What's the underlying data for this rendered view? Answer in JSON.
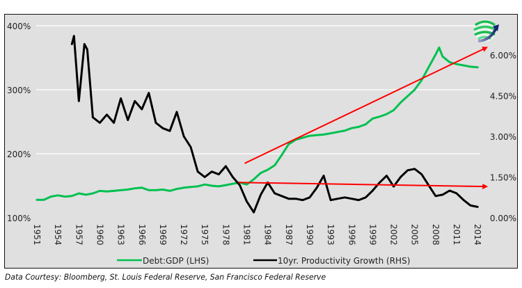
{
  "chart_data": {
    "type": "line",
    "title": "",
    "xlabel": "",
    "ylabel": "",
    "x_ticks": [
      "1951",
      "1954",
      "1957",
      "1960",
      "1963",
      "1966",
      "1969",
      "1972",
      "1975",
      "1978",
      "1981",
      "1984",
      "1987",
      "1990",
      "1993",
      "1996",
      "1999",
      "2002",
      "2005",
      "2008",
      "2011",
      "2014"
    ],
    "xlim": [
      1951,
      2015
    ],
    "y_left": {
      "ticks": [
        "100%",
        "200%",
        "300%",
        "400%"
      ],
      "tick_values": [
        100,
        200,
        300,
        400
      ],
      "ylim": [
        100,
        400
      ]
    },
    "y_right": {
      "ticks": [
        "0.00%",
        "1.50%",
        "3.00%",
        "4.50%",
        "6.00%"
      ],
      "tick_values": [
        0,
        1.5,
        3,
        4.5,
        6
      ],
      "ylim": [
        0,
        6
      ]
    },
    "grid": true,
    "legend_position": "bottom",
    "series": [
      {
        "name": "Debt:GDP (LHS)",
        "axis": "left",
        "color": "#00c050",
        "x": [
          1951,
          1952,
          1953,
          1954,
          1955,
          1956,
          1957,
          1958,
          1959,
          1960,
          1961,
          1962,
          1963,
          1964,
          1965,
          1966,
          1967,
          1968,
          1969,
          1970,
          1971,
          1972,
          1973,
          1974,
          1975,
          1976,
          1977,
          1978,
          1979,
          1980,
          1981,
          1982,
          1983,
          1984,
          1985,
          1986,
          1987,
          1988,
          1989,
          1990,
          1991,
          1992,
          1993,
          1994,
          1995,
          1996,
          1997,
          1998,
          1999,
          2000,
          2001,
          2002,
          2003,
          2004,
          2005,
          2006,
          2007,
          2008,
          2008.5,
          2009,
          2010,
          2011,
          2012,
          2013,
          2014
        ],
        "values": [
          128,
          128,
          133,
          135,
          133,
          134,
          138,
          136,
          138,
          142,
          141,
          142,
          143,
          144,
          146,
          147,
          143,
          143,
          144,
          142,
          145,
          147,
          148,
          149,
          152,
          150,
          149,
          151,
          153,
          155,
          152,
          160,
          170,
          175,
          182,
          198,
          215,
          222,
          225,
          228,
          229,
          230,
          232,
          234,
          236,
          240,
          242,
          246,
          255,
          258,
          262,
          268,
          280,
          290,
          300,
          315,
          335,
          355,
          366,
          352,
          343,
          340,
          338,
          336,
          335
        ]
      },
      {
        "name": "10yr. Productivity Growth (RHS)",
        "axis": "right",
        "color": "#000000",
        "x": [
          1956,
          1956.3,
          1957,
          1957.8,
          1958.2,
          1959,
          1960,
          1961,
          1962,
          1963,
          1964,
          1965,
          1966,
          1967,
          1968,
          1969,
          1970,
          1971,
          1972,
          1973,
          1974,
          1975,
          1976,
          1977,
          1978,
          1979,
          1980,
          1981,
          1982,
          1983,
          1984,
          1985,
          1986,
          1987,
          1988,
          1989,
          1990,
          1991,
          1992,
          1993,
          1994,
          1995,
          1996,
          1997,
          1998,
          1999,
          2000,
          2001,
          2002,
          2003,
          2004,
          2005,
          2006,
          2007,
          2008,
          2009,
          2010,
          2011,
          2012,
          2013,
          2014
        ],
        "values": [
          6.4,
          6.7,
          4.3,
          6.4,
          6.2,
          3.7,
          3.5,
          3.8,
          3.5,
          4.4,
          3.6,
          4.3,
          4.0,
          4.6,
          3.5,
          3.3,
          3.2,
          3.9,
          3.0,
          2.6,
          1.7,
          1.5,
          1.7,
          1.6,
          1.9,
          1.5,
          1.2,
          0.6,
          0.2,
          0.85,
          1.3,
          0.9,
          0.8,
          0.7,
          0.7,
          0.65,
          0.75,
          1.1,
          1.55,
          0.65,
          0.7,
          0.75,
          0.7,
          0.65,
          0.75,
          1.0,
          1.3,
          1.55,
          1.15,
          1.5,
          1.75,
          1.8,
          1.6,
          1.2,
          0.8,
          0.85,
          1.0,
          0.9,
          0.65,
          0.45,
          0.4
        ]
      }
    ],
    "annotations": [
      {
        "type": "arrow",
        "color": "#ff0000",
        "axis": "left",
        "from": [
          1980.7,
          185
        ],
        "to": [
          2015.3,
          366
        ],
        "description": "rising trend arrow on Debt:GDP"
      },
      {
        "type": "arrow",
        "color": "#ff0000",
        "axis": "right",
        "from": [
          1979.8,
          1.3
        ],
        "to": [
          2015.3,
          1.15
        ],
        "description": "flat trend arrow on productivity growth"
      }
    ]
  },
  "legend": {
    "items": [
      {
        "label": "Debt:GDP (LHS)",
        "color": "#00c050"
      },
      {
        "label": "10yr. Productivity Growth (RHS)",
        "color": "#000000"
      }
    ]
  },
  "footer": {
    "text": "Data Courtesy: Bloomberg, St. Louis Federal Reserve, San Francisco Federal Reserve"
  },
  "logo": {
    "icon": "globe-arrow-logo-icon"
  }
}
